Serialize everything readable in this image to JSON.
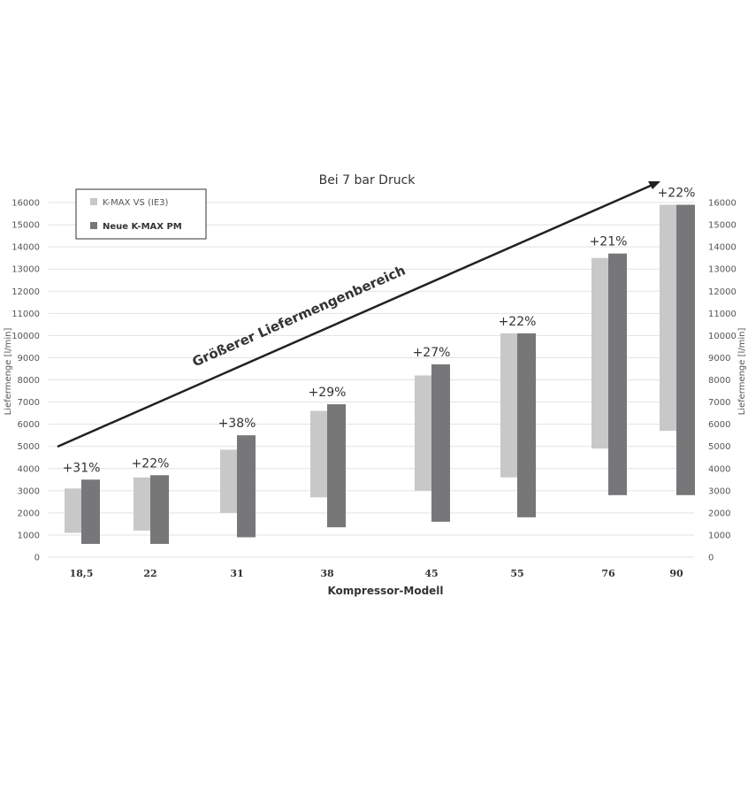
{
  "chart_data": {
    "type": "bar",
    "subtype": "floating-range",
    "title": "Bei 7 bar Druck",
    "xlabel": "Kompressor-Modell",
    "ylabel": "Liefermenge [l/min]",
    "ylabel_right": "Liefermenge [l/min]",
    "ylim": [
      0,
      16000
    ],
    "yticks": [
      0,
      1000,
      2000,
      3000,
      4000,
      5000,
      6000,
      7000,
      8000,
      9000,
      10000,
      11000,
      12000,
      13000,
      14000,
      15000,
      16000
    ],
    "grid": true,
    "legend_placement": "top-left",
    "categories": [
      "18,5",
      "22",
      "31",
      "38",
      "45",
      "55",
      "76",
      "90"
    ],
    "series": [
      {
        "name": "K-MAX VS (IE3)",
        "color": "#c8c8c8",
        "low": [
          1100,
          1200,
          2000,
          2700,
          3000,
          3600,
          4900,
          5700
        ],
        "high": [
          3100,
          3600,
          4850,
          6600,
          8200,
          10100,
          13500,
          15900
        ]
      },
      {
        "name": "Neue K-MAX PM",
        "color": "#77777a",
        "low": [
          600,
          600,
          900,
          1350,
          1600,
          1800,
          2800,
          2800
        ],
        "high": [
          3500,
          3700,
          5500,
          6900,
          8700,
          10100,
          13700,
          15900
        ]
      }
    ],
    "annotations": [
      "+31%",
      "+22%",
      "+38%",
      "+29%",
      "+27%",
      "+22%",
      "+21%",
      "+22%"
    ],
    "arrow_label": "Größerer Liefermengenbereich"
  }
}
